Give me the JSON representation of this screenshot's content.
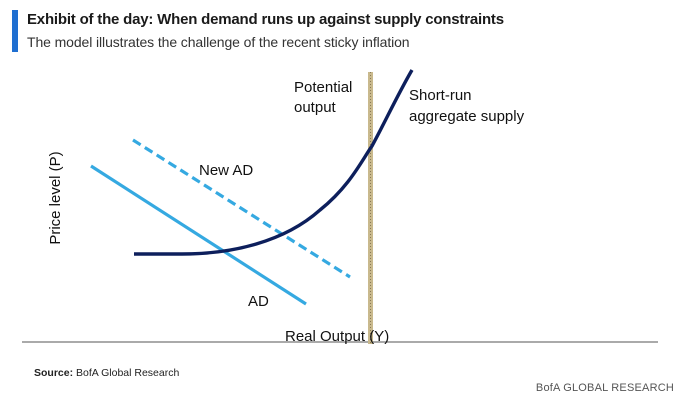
{
  "header": {
    "title": "Exhibit of the day: When demand runs up against supply constraints",
    "subtitle": "The model illustrates the challenge of the recent sticky inflation"
  },
  "diagram": {
    "y_axis_label": "Price level (P)",
    "x_axis_label": "Real Output (Y)",
    "potential_output_line1": "Potential",
    "potential_output_line2": "output",
    "sras_line1": "Short-run",
    "sras_line2": "aggregate supply",
    "new_ad_label": "New AD",
    "ad_label": "AD"
  },
  "footer": {
    "source_label": "Source:",
    "source_text": "BofA Global  Research",
    "brand": "BofA GLOBAL RESEARCH"
  },
  "colors": {
    "accent": "#1f6fd1",
    "ad": "#35a9e1",
    "new_ad": "#35a9e1",
    "sras": "#0d1f5c",
    "potential_output": "#c9b98d",
    "axis": "#555555"
  }
}
